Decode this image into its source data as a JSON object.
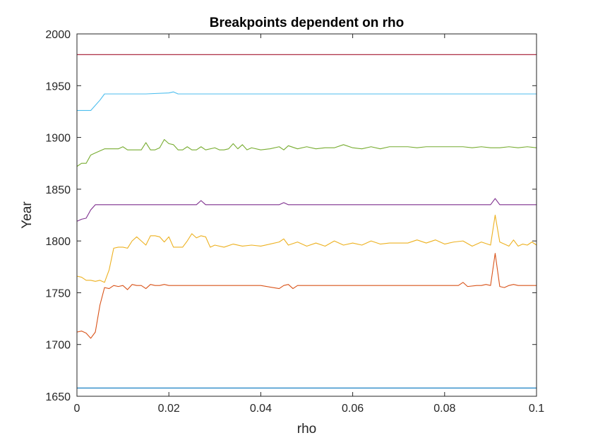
{
  "chart_data": {
    "type": "line",
    "title": "Breakpoints dependent on rho",
    "xlabel": "rho",
    "ylabel": "Year",
    "xlim": [
      0,
      0.1
    ],
    "ylim": [
      1650,
      2000
    ],
    "xticks": [
      0,
      0.02,
      0.04,
      0.06,
      0.08,
      0.1
    ],
    "xtick_labels": [
      "0",
      "0.02",
      "0.04",
      "0.06",
      "0.08",
      "0.1"
    ],
    "yticks": [
      1650,
      1700,
      1750,
      1800,
      1850,
      1900,
      1950,
      2000
    ],
    "ytick_labels": [
      "1650",
      "1700",
      "1750",
      "1800",
      "1850",
      "1900",
      "1950",
      "2000"
    ],
    "grid": false,
    "series": [
      {
        "color": "#0072BD",
        "points": [
          [
            0,
            1658
          ],
          [
            0.1,
            1658
          ]
        ]
      },
      {
        "color": "#D95319",
        "points": [
          [
            0,
            1712
          ],
          [
            0.001,
            1713
          ],
          [
            0.002,
            1711
          ],
          [
            0.003,
            1706
          ],
          [
            0.004,
            1712
          ],
          [
            0.005,
            1738
          ],
          [
            0.006,
            1755
          ],
          [
            0.007,
            1754
          ],
          [
            0.008,
            1757
          ],
          [
            0.009,
            1756
          ],
          [
            0.01,
            1757
          ],
          [
            0.011,
            1753
          ],
          [
            0.012,
            1758
          ],
          [
            0.013,
            1757
          ],
          [
            0.014,
            1757
          ],
          [
            0.015,
            1754
          ],
          [
            0.016,
            1758
          ],
          [
            0.017,
            1757
          ],
          [
            0.018,
            1757
          ],
          [
            0.019,
            1758
          ],
          [
            0.02,
            1757
          ],
          [
            0.025,
            1757
          ],
          [
            0.03,
            1757
          ],
          [
            0.035,
            1757
          ],
          [
            0.04,
            1757
          ],
          [
            0.044,
            1754
          ],
          [
            0.045,
            1757
          ],
          [
            0.046,
            1758
          ],
          [
            0.047,
            1754
          ],
          [
            0.048,
            1757
          ],
          [
            0.05,
            1757
          ],
          [
            0.055,
            1757
          ],
          [
            0.06,
            1757
          ],
          [
            0.065,
            1757
          ],
          [
            0.07,
            1757
          ],
          [
            0.075,
            1757
          ],
          [
            0.08,
            1757
          ],
          [
            0.083,
            1757
          ],
          [
            0.084,
            1760
          ],
          [
            0.085,
            1756
          ],
          [
            0.087,
            1757
          ],
          [
            0.088,
            1757
          ],
          [
            0.089,
            1758
          ],
          [
            0.09,
            1757
          ],
          [
            0.091,
            1788
          ],
          [
            0.092,
            1756
          ],
          [
            0.093,
            1755
          ],
          [
            0.094,
            1757
          ],
          [
            0.095,
            1758
          ],
          [
            0.096,
            1757
          ],
          [
            0.098,
            1757
          ],
          [
            0.1,
            1757
          ]
        ]
      },
      {
        "color": "#EDB120",
        "points": [
          [
            0,
            1766
          ],
          [
            0.001,
            1765
          ],
          [
            0.002,
            1762
          ],
          [
            0.003,
            1762
          ],
          [
            0.004,
            1761
          ],
          [
            0.005,
            1762
          ],
          [
            0.006,
            1760
          ],
          [
            0.007,
            1772
          ],
          [
            0.008,
            1793
          ],
          [
            0.009,
            1794
          ],
          [
            0.01,
            1794
          ],
          [
            0.011,
            1793
          ],
          [
            0.012,
            1800
          ],
          [
            0.013,
            1804
          ],
          [
            0.014,
            1800
          ],
          [
            0.015,
            1796
          ],
          [
            0.016,
            1805
          ],
          [
            0.017,
            1805
          ],
          [
            0.018,
            1804
          ],
          [
            0.019,
            1799
          ],
          [
            0.02,
            1804
          ],
          [
            0.021,
            1794
          ],
          [
            0.022,
            1794
          ],
          [
            0.023,
            1794
          ],
          [
            0.024,
            1800
          ],
          [
            0.025,
            1807
          ],
          [
            0.026,
            1803
          ],
          [
            0.027,
            1805
          ],
          [
            0.028,
            1804
          ],
          [
            0.029,
            1794
          ],
          [
            0.03,
            1796
          ],
          [
            0.032,
            1794
          ],
          [
            0.034,
            1797
          ],
          [
            0.036,
            1795
          ],
          [
            0.038,
            1796
          ],
          [
            0.04,
            1795
          ],
          [
            0.042,
            1797
          ],
          [
            0.044,
            1799
          ],
          [
            0.045,
            1802
          ],
          [
            0.046,
            1796
          ],
          [
            0.048,
            1799
          ],
          [
            0.05,
            1795
          ],
          [
            0.052,
            1798
          ],
          [
            0.054,
            1795
          ],
          [
            0.056,
            1800
          ],
          [
            0.058,
            1796
          ],
          [
            0.06,
            1798
          ],
          [
            0.062,
            1796
          ],
          [
            0.064,
            1800
          ],
          [
            0.066,
            1797
          ],
          [
            0.068,
            1798
          ],
          [
            0.07,
            1798
          ],
          [
            0.072,
            1798
          ],
          [
            0.074,
            1801
          ],
          [
            0.076,
            1798
          ],
          [
            0.078,
            1801
          ],
          [
            0.08,
            1797
          ],
          [
            0.082,
            1799
          ],
          [
            0.084,
            1800
          ],
          [
            0.086,
            1795
          ],
          [
            0.088,
            1799
          ],
          [
            0.09,
            1796
          ],
          [
            0.091,
            1825
          ],
          [
            0.092,
            1799
          ],
          [
            0.093,
            1797
          ],
          [
            0.094,
            1795
          ],
          [
            0.095,
            1801
          ],
          [
            0.096,
            1795
          ],
          [
            0.097,
            1797
          ],
          [
            0.098,
            1796
          ],
          [
            0.099,
            1799
          ],
          [
            0.1,
            1796
          ]
        ]
      },
      {
        "color": "#7E2F8E",
        "points": [
          [
            0,
            1819
          ],
          [
            0.001,
            1821
          ],
          [
            0.002,
            1822
          ],
          [
            0.003,
            1830
          ],
          [
            0.004,
            1835
          ],
          [
            0.005,
            1835
          ],
          [
            0.01,
            1835
          ],
          [
            0.02,
            1835
          ],
          [
            0.026,
            1835
          ],
          [
            0.027,
            1839
          ],
          [
            0.028,
            1835
          ],
          [
            0.035,
            1835
          ],
          [
            0.044,
            1835
          ],
          [
            0.045,
            1837
          ],
          [
            0.046,
            1835
          ],
          [
            0.06,
            1835
          ],
          [
            0.07,
            1835
          ],
          [
            0.08,
            1835
          ],
          [
            0.09,
            1835
          ],
          [
            0.091,
            1841
          ],
          [
            0.092,
            1835
          ],
          [
            0.1,
            1835
          ]
        ]
      },
      {
        "color": "#77AC30",
        "points": [
          [
            0,
            1872
          ],
          [
            0.001,
            1875
          ],
          [
            0.002,
            1875
          ],
          [
            0.003,
            1883
          ],
          [
            0.004,
            1885
          ],
          [
            0.005,
            1887
          ],
          [
            0.006,
            1889
          ],
          [
            0.007,
            1889
          ],
          [
            0.008,
            1889
          ],
          [
            0.009,
            1889
          ],
          [
            0.01,
            1891
          ],
          [
            0.011,
            1888
          ],
          [
            0.012,
            1888
          ],
          [
            0.014,
            1888
          ],
          [
            0.015,
            1895
          ],
          [
            0.016,
            1888
          ],
          [
            0.017,
            1888
          ],
          [
            0.018,
            1890
          ],
          [
            0.019,
            1898
          ],
          [
            0.02,
            1894
          ],
          [
            0.021,
            1893
          ],
          [
            0.022,
            1888
          ],
          [
            0.023,
            1888
          ],
          [
            0.024,
            1891
          ],
          [
            0.025,
            1888
          ],
          [
            0.026,
            1888
          ],
          [
            0.027,
            1891
          ],
          [
            0.028,
            1888
          ],
          [
            0.03,
            1890
          ],
          [
            0.031,
            1888
          ],
          [
            0.032,
            1888
          ],
          [
            0.033,
            1889
          ],
          [
            0.034,
            1894
          ],
          [
            0.035,
            1889
          ],
          [
            0.036,
            1893
          ],
          [
            0.037,
            1888
          ],
          [
            0.038,
            1890
          ],
          [
            0.04,
            1888
          ],
          [
            0.042,
            1889
          ],
          [
            0.044,
            1891
          ],
          [
            0.045,
            1888
          ],
          [
            0.046,
            1892
          ],
          [
            0.048,
            1889
          ],
          [
            0.05,
            1891
          ],
          [
            0.052,
            1889
          ],
          [
            0.054,
            1890
          ],
          [
            0.056,
            1890
          ],
          [
            0.058,
            1893
          ],
          [
            0.06,
            1890
          ],
          [
            0.062,
            1889
          ],
          [
            0.064,
            1891
          ],
          [
            0.066,
            1889
          ],
          [
            0.068,
            1891
          ],
          [
            0.07,
            1891
          ],
          [
            0.072,
            1891
          ],
          [
            0.074,
            1890
          ],
          [
            0.076,
            1891
          ],
          [
            0.078,
            1891
          ],
          [
            0.08,
            1891
          ],
          [
            0.082,
            1891
          ],
          [
            0.084,
            1891
          ],
          [
            0.086,
            1890
          ],
          [
            0.088,
            1891
          ],
          [
            0.09,
            1890
          ],
          [
            0.092,
            1890
          ],
          [
            0.094,
            1891
          ],
          [
            0.096,
            1890
          ],
          [
            0.098,
            1891
          ],
          [
            0.1,
            1890
          ]
        ]
      },
      {
        "color": "#4DBEEE",
        "points": [
          [
            0,
            1926
          ],
          [
            0.001,
            1926
          ],
          [
            0.002,
            1926
          ],
          [
            0.003,
            1926
          ],
          [
            0.004,
            1931
          ],
          [
            0.005,
            1936
          ],
          [
            0.006,
            1942
          ],
          [
            0.007,
            1942
          ],
          [
            0.01,
            1942
          ],
          [
            0.015,
            1942
          ],
          [
            0.02,
            1943
          ],
          [
            0.021,
            1944
          ],
          [
            0.022,
            1942
          ],
          [
            0.03,
            1942
          ],
          [
            0.04,
            1942
          ],
          [
            0.05,
            1942
          ],
          [
            0.06,
            1942
          ],
          [
            0.07,
            1942
          ],
          [
            0.08,
            1942
          ],
          [
            0.09,
            1942
          ],
          [
            0.1,
            1942
          ]
        ]
      },
      {
        "color": "#A2142F",
        "points": [
          [
            0,
            1980
          ],
          [
            0.1,
            1980
          ]
        ]
      }
    ]
  }
}
